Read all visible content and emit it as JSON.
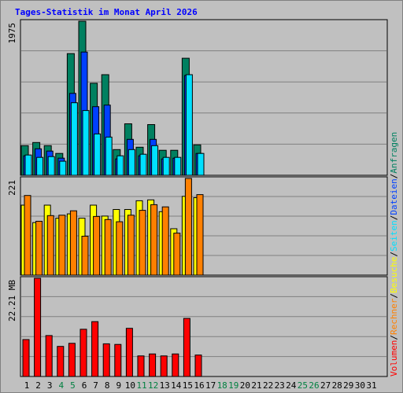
{
  "title": "Tages-Statistik im Monat April 2026",
  "colors": {
    "anfragen": "#008060",
    "dateien": "#0040ff",
    "seiten": "#00e0ff",
    "besuche": "#ffff00",
    "rechner": "#ff8000",
    "volumen": "#ff0000",
    "weekend_day": "#008040",
    "weekday": "#000000",
    "legend_separator": "#000000",
    "plot_bg": "#c0c0c0",
    "grid": "#808080"
  },
  "chart_data": [
    {
      "type": "bar",
      "panel": "top",
      "y_max_label": "1975",
      "ylim": [
        0,
        1975
      ],
      "categories": [
        "1",
        "2",
        "3",
        "4",
        "5",
        "6",
        "7",
        "8",
        "9",
        "10",
        "11",
        "12",
        "13",
        "14",
        "15",
        "16",
        "17",
        "18",
        "19",
        "20",
        "21",
        "22",
        "23",
        "24",
        "25",
        "26",
        "27",
        "28",
        "29",
        "30",
        "31"
      ],
      "series": [
        {
          "name": "Anfragen",
          "color_key": "anfragen",
          "values": [
            380,
            420,
            380,
            280,
            1560,
            1975,
            1180,
            1290,
            330,
            660,
            360,
            650,
            320,
            320,
            1500,
            390,
            0,
            0,
            0,
            0,
            0,
            0,
            0,
            0,
            0,
            0,
            0,
            0,
            0,
            0,
            0
          ]
        },
        {
          "name": "Dateien",
          "color_key": "dateien",
          "values": [
            250,
            340,
            310,
            220,
            1050,
            1580,
            880,
            900,
            210,
            460,
            250,
            460,
            210,
            220,
            1280,
            280,
            0,
            0,
            0,
            0,
            0,
            0,
            0,
            0,
            0,
            0,
            0,
            0,
            0,
            0,
            0
          ]
        },
        {
          "name": "Seiten",
          "color_key": "seiten",
          "values": [
            260,
            230,
            240,
            180,
            930,
            830,
            530,
            490,
            250,
            330,
            270,
            380,
            230,
            230,
            1290,
            280,
            0,
            0,
            0,
            0,
            0,
            0,
            0,
            0,
            0,
            0,
            0,
            0,
            0,
            0,
            0
          ]
        }
      ]
    },
    {
      "type": "bar",
      "panel": "middle",
      "y_max_label": "221",
      "ylim": [
        0,
        221
      ],
      "categories": [
        "1",
        "2",
        "3",
        "4",
        "5",
        "6",
        "7",
        "8",
        "9",
        "10",
        "11",
        "12",
        "13",
        "14",
        "15",
        "16",
        "17",
        "18",
        "19",
        "20",
        "21",
        "22",
        "23",
        "24",
        "25",
        "26",
        "27",
        "28",
        "29",
        "30",
        "31"
      ],
      "series": [
        {
          "name": "Besuche",
          "color_key": "besuche",
          "values": [
            160,
            120,
            160,
            130,
            140,
            130,
            160,
            135,
            150,
            150,
            170,
            172,
            145,
            106,
            180,
            177,
            0,
            0,
            0,
            0,
            0,
            0,
            0,
            0,
            0,
            0,
            0,
            0,
            0,
            0,
            0
          ]
        },
        {
          "name": "Rechner",
          "color_key": "rechner",
          "values": [
            182,
            123,
            136,
            137,
            147,
            89,
            134,
            127,
            122,
            137,
            148,
            161,
            156,
            96,
            221,
            184,
            0,
            0,
            0,
            0,
            0,
            0,
            0,
            0,
            0,
            0,
            0,
            0,
            0,
            0,
            0
          ]
        }
      ]
    },
    {
      "type": "bar",
      "panel": "bottom",
      "y_max_label": "22.21 MB",
      "ylim": [
        0,
        22.21
      ],
      "unit": "MB",
      "categories": [
        "1",
        "2",
        "3",
        "4",
        "5",
        "6",
        "7",
        "8",
        "9",
        "10",
        "11",
        "12",
        "13",
        "14",
        "15",
        "16",
        "17",
        "18",
        "19",
        "20",
        "21",
        "22",
        "23",
        "24",
        "25",
        "26",
        "27",
        "28",
        "29",
        "30",
        "31"
      ],
      "series": [
        {
          "name": "Volumen",
          "color_key": "volumen",
          "values": [
            8.35,
            22.21,
            9.25,
            6.8,
            7.5,
            10.67,
            12.4,
            7.4,
            7.25,
            10.9,
            4.65,
            5.1,
            4.65,
            5.1,
            13.13,
            4.85,
            0,
            0,
            0,
            0,
            0,
            0,
            0,
            0,
            0,
            0,
            0,
            0,
            0,
            0,
            0
          ]
        }
      ]
    }
  ],
  "weekend_days": [
    "4",
    "5",
    "11",
    "12",
    "18",
    "19",
    "25",
    "26"
  ],
  "legend": [
    {
      "label": "Volumen",
      "color_key": "volumen"
    },
    {
      "label": "/",
      "color_key": "legend_separator"
    },
    {
      "label": "Rechner",
      "color_key": "rechner"
    },
    {
      "label": "/",
      "color_key": "legend_separator"
    },
    {
      "label": "Besuche",
      "color_key": "besuche"
    },
    {
      "label": "/",
      "color_key": "legend_separator"
    },
    {
      "label": "Seiten",
      "color_key": "seiten"
    },
    {
      "label": "/",
      "color_key": "legend_separator"
    },
    {
      "label": "Dateien",
      "color_key": "dateien"
    },
    {
      "label": "/",
      "color_key": "legend_separator"
    },
    {
      "label": "Anfragen",
      "color_key": "anfragen"
    }
  ]
}
